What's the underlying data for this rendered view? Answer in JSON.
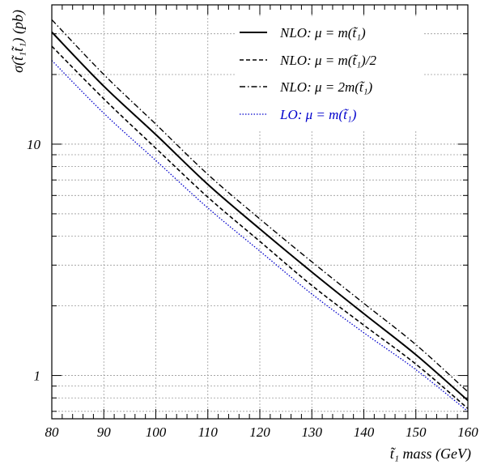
{
  "chart_data": {
    "type": "line",
    "y_scale": "log",
    "grid": true,
    "legend_position": "top-right",
    "xlabel": "t̃₁ mass (GeV)",
    "ylabel": "σ(t̃₁t̃₁) (pb)",
    "xlim": [
      80,
      160
    ],
    "ylim": [
      0.65,
      40
    ],
    "x_ticks": [
      "80",
      "90",
      "100",
      "110",
      "120",
      "130",
      "140",
      "150",
      "160"
    ],
    "y_ticks": [
      "1",
      "10"
    ],
    "x": [
      80,
      90,
      100,
      110,
      120,
      130,
      140,
      150,
      160
    ],
    "series": [
      {
        "name": "NLO: μ = m(t̃₁)",
        "color": "#000000",
        "dash": "solid",
        "values": [
          30.5,
          17.8,
          11.0,
          6.7,
          4.3,
          2.8,
          1.85,
          1.23,
          0.78
        ]
      },
      {
        "name": "NLO: μ = m(t̃₁)/2",
        "color": "#000000",
        "dash": "dashed",
        "values": [
          26.5,
          15.7,
          9.6,
          5.9,
          3.8,
          2.45,
          1.65,
          1.12,
          0.72
        ]
      },
      {
        "name": "NLO: μ = 2m(t̃₁)",
        "color": "#000000",
        "dash": "dashdot",
        "values": [
          34.5,
          20.0,
          12.2,
          7.4,
          4.75,
          3.1,
          2.05,
          1.36,
          0.85
        ]
      },
      {
        "name": "LO:    μ = m(t̃₁)",
        "color": "#0000cc",
        "dash": "dotted",
        "values": [
          23.0,
          13.6,
          8.5,
          5.3,
          3.45,
          2.25,
          1.53,
          1.06,
          0.7
        ]
      }
    ]
  }
}
